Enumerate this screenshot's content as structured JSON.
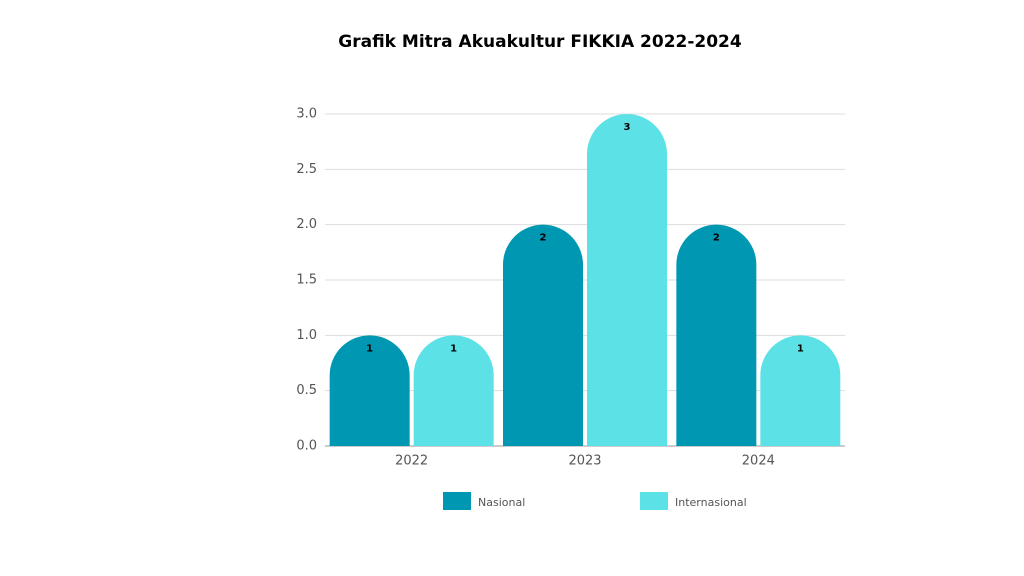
{
  "chart_data": {
    "type": "bar",
    "title": "Grafik Mitra Akuakultur FIKKIA 2022-2024",
    "categories": [
      "2022",
      "2023",
      "2024"
    ],
    "series": [
      {
        "name": "Nasional",
        "color": "#0097b2",
        "values": [
          1,
          2,
          2
        ]
      },
      {
        "name": "Internasional",
        "color": "#5ce1e6",
        "values": [
          1,
          3,
          1
        ]
      }
    ],
    "ylim": [
      0,
      3
    ],
    "yticks": [
      {
        "value": 0,
        "label": "0.0"
      },
      {
        "value": 0.5,
        "label": "0.5"
      },
      {
        "value": 1,
        "label": "1.0"
      },
      {
        "value": 1.5,
        "label": "1.5"
      },
      {
        "value": 2,
        "label": "2.0"
      },
      {
        "value": 2.5,
        "label": "2.5"
      },
      {
        "value": 3,
        "label": "3.0"
      }
    ],
    "grid": true
  }
}
